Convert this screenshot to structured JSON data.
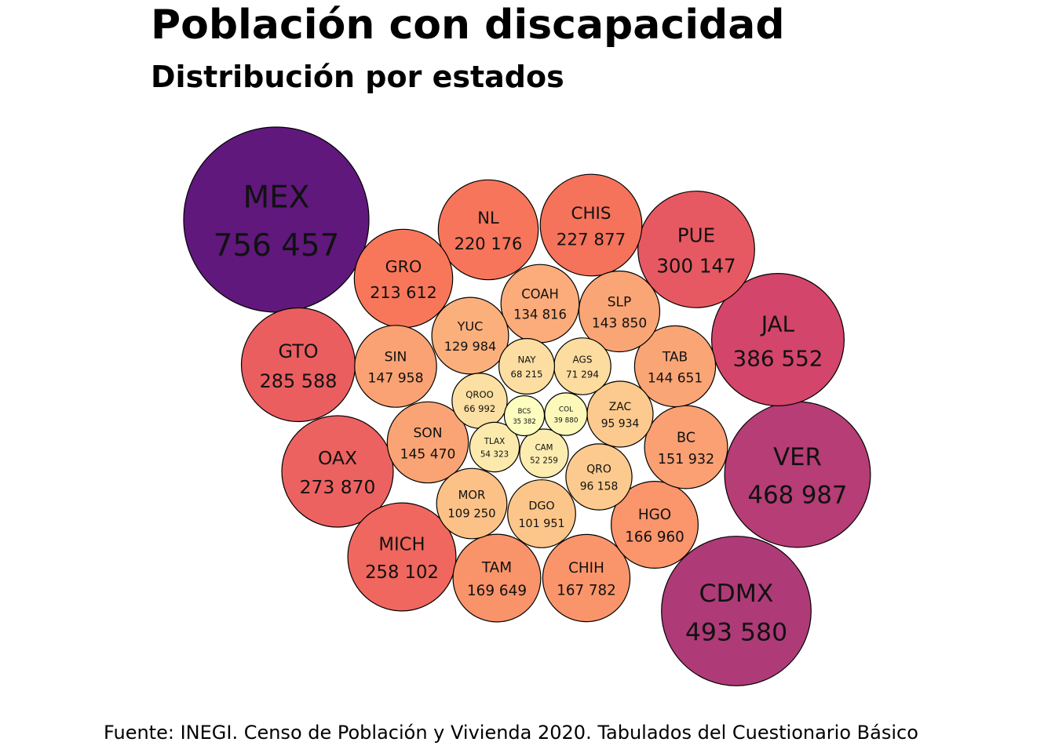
{
  "title": "Población con discapacidad",
  "subtitle": "Distribución por estados",
  "caption": "Fuente: INEGI. Censo de Población y Vivienda 2020. Tabulados del Cuestionario Básico",
  "chart_data": {
    "type": "packed-bubble",
    "color_scale": "magma (light yellow = low, dark purple = high)",
    "states": [
      {
        "name": "MEX",
        "value": 756457,
        "value_label": "756 457"
      },
      {
        "name": "CDMX",
        "value": 493580,
        "value_label": "493 580"
      },
      {
        "name": "VER",
        "value": 468987,
        "value_label": "468 987"
      },
      {
        "name": "JAL",
        "value": 386552,
        "value_label": "386 552"
      },
      {
        "name": "PUE",
        "value": 300147,
        "value_label": "300 147"
      },
      {
        "name": "GTO",
        "value": 285588,
        "value_label": "285 588"
      },
      {
        "name": "OAX",
        "value": 273870,
        "value_label": "273 870"
      },
      {
        "name": "MICH",
        "value": 258102,
        "value_label": "258 102"
      },
      {
        "name": "CHIS",
        "value": 227877,
        "value_label": "227 877"
      },
      {
        "name": "NL",
        "value": 220176,
        "value_label": "220 176"
      },
      {
        "name": "GRO",
        "value": 213612,
        "value_label": "213 612"
      },
      {
        "name": "TAM",
        "value": 169649,
        "value_label": "169 649"
      },
      {
        "name": "CHIH",
        "value": 167782,
        "value_label": "167 782"
      },
      {
        "name": "HGO",
        "value": 166960,
        "value_label": "166 960"
      },
      {
        "name": "BC",
        "value": 151932,
        "value_label": "151 932"
      },
      {
        "name": "SIN",
        "value": 147958,
        "value_label": "147 958"
      },
      {
        "name": "SON",
        "value": 145470,
        "value_label": "145 470"
      },
      {
        "name": "TAB",
        "value": 144651,
        "value_label": "144 651"
      },
      {
        "name": "SLP",
        "value": 143850,
        "value_label": "143 850"
      },
      {
        "name": "COAH",
        "value": 134816,
        "value_label": "134 816"
      },
      {
        "name": "YUC",
        "value": 129984,
        "value_label": "129 984"
      },
      {
        "name": "MOR",
        "value": 109250,
        "value_label": "109 250"
      },
      {
        "name": "DGO",
        "value": 101951,
        "value_label": "101 951"
      },
      {
        "name": "QRO",
        "value": 96158,
        "value_label": "96 158"
      },
      {
        "name": "ZAC",
        "value": 95934,
        "value_label": "95 934"
      },
      {
        "name": "AGS",
        "value": 71294,
        "value_label": "71 294"
      },
      {
        "name": "NAY",
        "value": 68215,
        "value_label": "68 215"
      },
      {
        "name": "QROO",
        "value": 66992,
        "value_label": "66 992"
      },
      {
        "name": "TLAX",
        "value": 54323,
        "value_label": "54 323"
      },
      {
        "name": "CAM",
        "value": 52259,
        "value_label": "52 259"
      },
      {
        "name": "COL",
        "value": 39880,
        "value_label": "39 880"
      },
      {
        "name": "BCS",
        "value": 35382,
        "value_label": "35 382"
      }
    ]
  }
}
